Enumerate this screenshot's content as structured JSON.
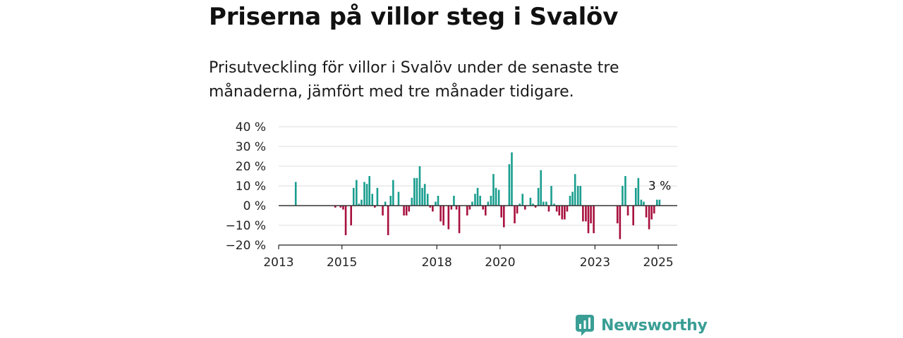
{
  "title": "Priserna på villor steg i Svalöv",
  "subtitle": "Prisutveckling för villor i Svalöv under de senaste tre månaderna, jämfört med tre månader tidigare.",
  "brand": {
    "name": "Newsworthy",
    "icon": "newsworthy-logo-icon"
  },
  "colors": {
    "positive": "#1a9e8f",
    "negative": "#a8103e",
    "grid": "#dddddd",
    "zero_line": "#333333",
    "brand": "#3a9e95"
  },
  "chart_data": {
    "type": "bar",
    "title": "Priserna på villor steg i Svalöv",
    "subtitle": "Prisutveckling för villor i Svalöv under de senaste tre månaderna, jämfört med tre månader tidigare.",
    "xlabel": "",
    "ylabel": "",
    "ylim": [
      -20,
      40
    ],
    "yticks": [
      -20,
      -10,
      0,
      10,
      20,
      30,
      40
    ],
    "ytick_labels": [
      "−20 %",
      "−10 %",
      "0 %",
      "10 %",
      "20 %",
      "30 %",
      "40 %"
    ],
    "xlim": [
      2013.0,
      2025.6
    ],
    "xticks": [
      2013,
      2015,
      2018,
      2020,
      2023,
      2025
    ],
    "xtick_labels": [
      "2013",
      "2015",
      "2018",
      "2020",
      "2023",
      "2025"
    ],
    "grid": true,
    "legend": "none",
    "x": [
      2013.54,
      2014.79,
      2014.96,
      2015.04,
      2015.12,
      2015.29,
      2015.37,
      2015.46,
      2015.54,
      2015.62,
      2015.71,
      2015.79,
      2015.87,
      2015.96,
      2016.04,
      2016.12,
      2016.29,
      2016.37,
      2016.46,
      2016.54,
      2016.62,
      2016.79,
      2016.96,
      2017.04,
      2017.12,
      2017.21,
      2017.29,
      2017.37,
      2017.46,
      2017.54,
      2017.62,
      2017.71,
      2017.79,
      2017.87,
      2017.96,
      2018.04,
      2018.12,
      2018.21,
      2018.37,
      2018.46,
      2018.54,
      2018.62,
      2018.71,
      2018.96,
      2019.04,
      2019.12,
      2019.21,
      2019.29,
      2019.37,
      2019.46,
      2019.54,
      2019.62,
      2019.71,
      2019.79,
      2019.87,
      2019.96,
      2020.04,
      2020.12,
      2020.29,
      2020.37,
      2020.46,
      2020.54,
      2020.62,
      2020.71,
      2020.79,
      2020.96,
      2021.04,
      2021.12,
      2021.21,
      2021.29,
      2021.37,
      2021.46,
      2021.54,
      2021.62,
      2021.71,
      2021.79,
      2021.87,
      2021.96,
      2022.04,
      2022.12,
      2022.21,
      2022.29,
      2022.37,
      2022.46,
      2022.54,
      2022.62,
      2022.71,
      2022.79,
      2022.87,
      2022.96,
      2023.71,
      2023.79,
      2023.87,
      2023.96,
      2024.04,
      2024.21,
      2024.29,
      2024.37,
      2024.46,
      2024.54,
      2024.62,
      2024.71,
      2024.79,
      2024.87,
      2024.96,
      2025.04
    ],
    "values": [
      12,
      -1,
      -1,
      -2,
      -15,
      -10,
      9,
      13,
      1,
      3,
      12,
      11,
      15,
      6,
      -1,
      9,
      -5,
      2,
      -15,
      5,
      13,
      7,
      -5,
      -5,
      -3,
      4,
      14,
      14,
      20,
      9,
      11,
      6,
      -1,
      -3,
      2,
      5,
      -8,
      -10,
      -12,
      -2,
      5,
      -2,
      -14,
      -5,
      -2,
      2,
      6,
      9,
      5,
      -2,
      -5,
      2,
      5,
      16,
      9,
      8,
      -6,
      -11,
      21,
      27,
      -9,
      -4,
      1,
      6,
      -2,
      4,
      1,
      -1,
      9,
      18,
      2,
      2,
      -3,
      10,
      1,
      -3,
      -5,
      -7,
      -7,
      -3,
      5,
      7,
      16,
      10,
      10,
      -8,
      -8,
      -14,
      -9,
      -14,
      -9,
      -17,
      10,
      15,
      -5,
      -10,
      9,
      14,
      3,
      2,
      -6,
      -12,
      -7,
      -4,
      3,
      3
    ],
    "annotations": [
      {
        "text": "3 %",
        "x": 2025.04,
        "y": 3
      }
    ]
  }
}
